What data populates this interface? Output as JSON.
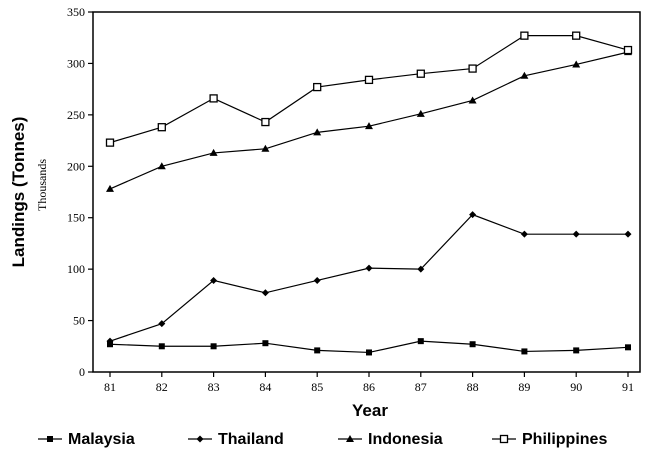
{
  "chart_data": {
    "type": "line",
    "ylabel": "Landings (Tonnes)",
    "ylabel_sub": "Thousands",
    "xlabel": "Year",
    "x": [
      "81",
      "82",
      "83",
      "84",
      "85",
      "86",
      "87",
      "88",
      "89",
      "90",
      "91"
    ],
    "ylim": [
      0,
      350
    ],
    "yticks": [
      0,
      50,
      100,
      150,
      200,
      250,
      300,
      350
    ],
    "grid": false,
    "legend_position": "bottom",
    "series": [
      {
        "name": "Malaysia",
        "marker": "filled-square",
        "values": [
          27,
          25,
          25,
          28,
          21,
          19,
          30,
          27,
          20,
          21,
          24
        ]
      },
      {
        "name": "Thailand",
        "marker": "filled-diamond",
        "values": [
          30,
          47,
          89,
          77,
          89,
          101,
          100,
          153,
          134,
          134,
          134
        ]
      },
      {
        "name": "Indonesia",
        "marker": "filled-triangle",
        "values": [
          178,
          200,
          213,
          217,
          233,
          239,
          251,
          264,
          288,
          299,
          311
        ]
      },
      {
        "name": "Philippines",
        "marker": "open-square",
        "values": [
          223,
          238,
          266,
          243,
          277,
          284,
          290,
          295,
          327,
          327,
          313
        ]
      }
    ]
  }
}
